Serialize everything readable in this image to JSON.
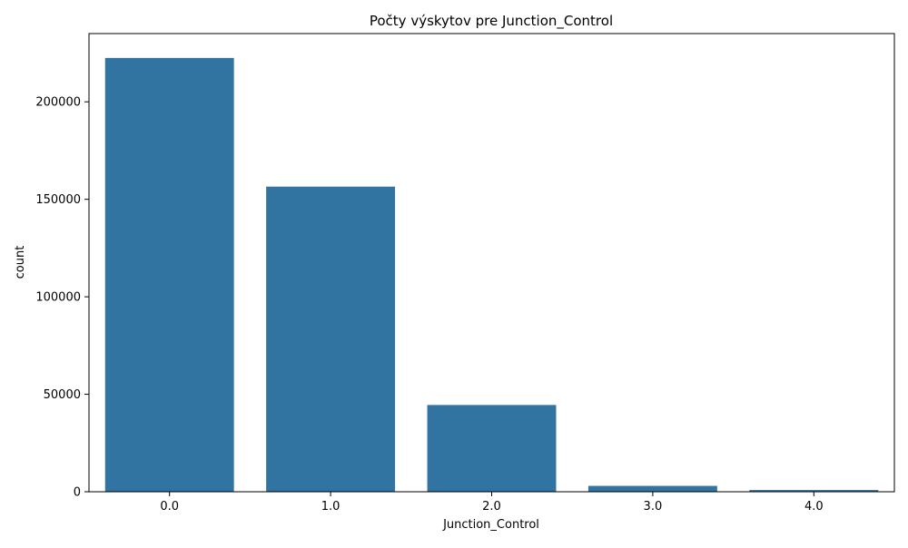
{
  "chart_data": {
    "type": "bar",
    "title": "Počty výskytov pre Junction_Control",
    "xlabel": "Junction_Control",
    "ylabel": "count",
    "categories": [
      "0.0",
      "1.0",
      "2.0",
      "3.0",
      "4.0"
    ],
    "values": [
      222500,
      156500,
      44500,
      3000,
      900
    ],
    "ylim": [
      0,
      235000
    ],
    "yticks": [
      0,
      50000,
      100000,
      150000,
      200000
    ],
    "ytick_labels": [
      "0",
      "50000",
      "100000",
      "150000",
      "200000"
    ],
    "grid": false,
    "legend": "none",
    "colors": {
      "bar": "#3274a1",
      "axes": "#000000",
      "background": "#ffffff"
    }
  }
}
